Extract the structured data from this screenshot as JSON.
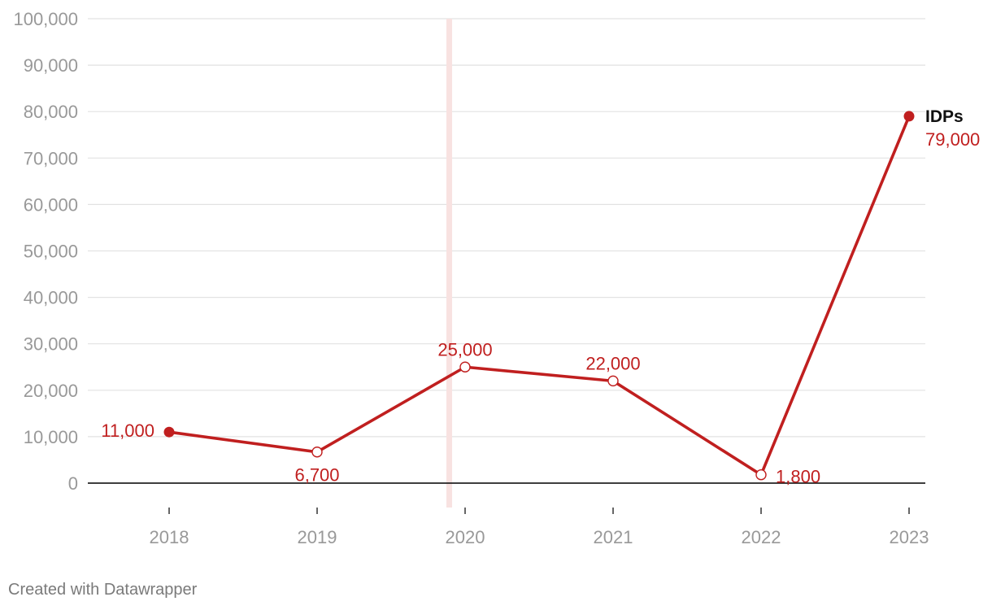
{
  "chart_data": {
    "type": "line",
    "title": "",
    "xlabel": "",
    "ylabel": "",
    "x": [
      "2018",
      "2019",
      "2020",
      "2021",
      "2022",
      "2023"
    ],
    "ylim": [
      0,
      100000
    ],
    "y_ticks": [
      "0",
      "10,000",
      "20,000",
      "30,000",
      "40,000",
      "50,000",
      "60,000",
      "70,000",
      "80,000",
      "90,000",
      "100,000"
    ],
    "grid": true,
    "series": [
      {
        "name": "IDPs",
        "values": [
          11000,
          6700,
          25000,
          22000,
          1800,
          79000
        ],
        "labels": [
          "11,000",
          "6,700",
          "25,000",
          "22,000",
          "1,800",
          "79,000"
        ],
        "color": "#c01f1f"
      }
    ],
    "highlight_band_color": "#f8e2e1"
  },
  "footer": {
    "credit": "Created with Datawrapper"
  }
}
